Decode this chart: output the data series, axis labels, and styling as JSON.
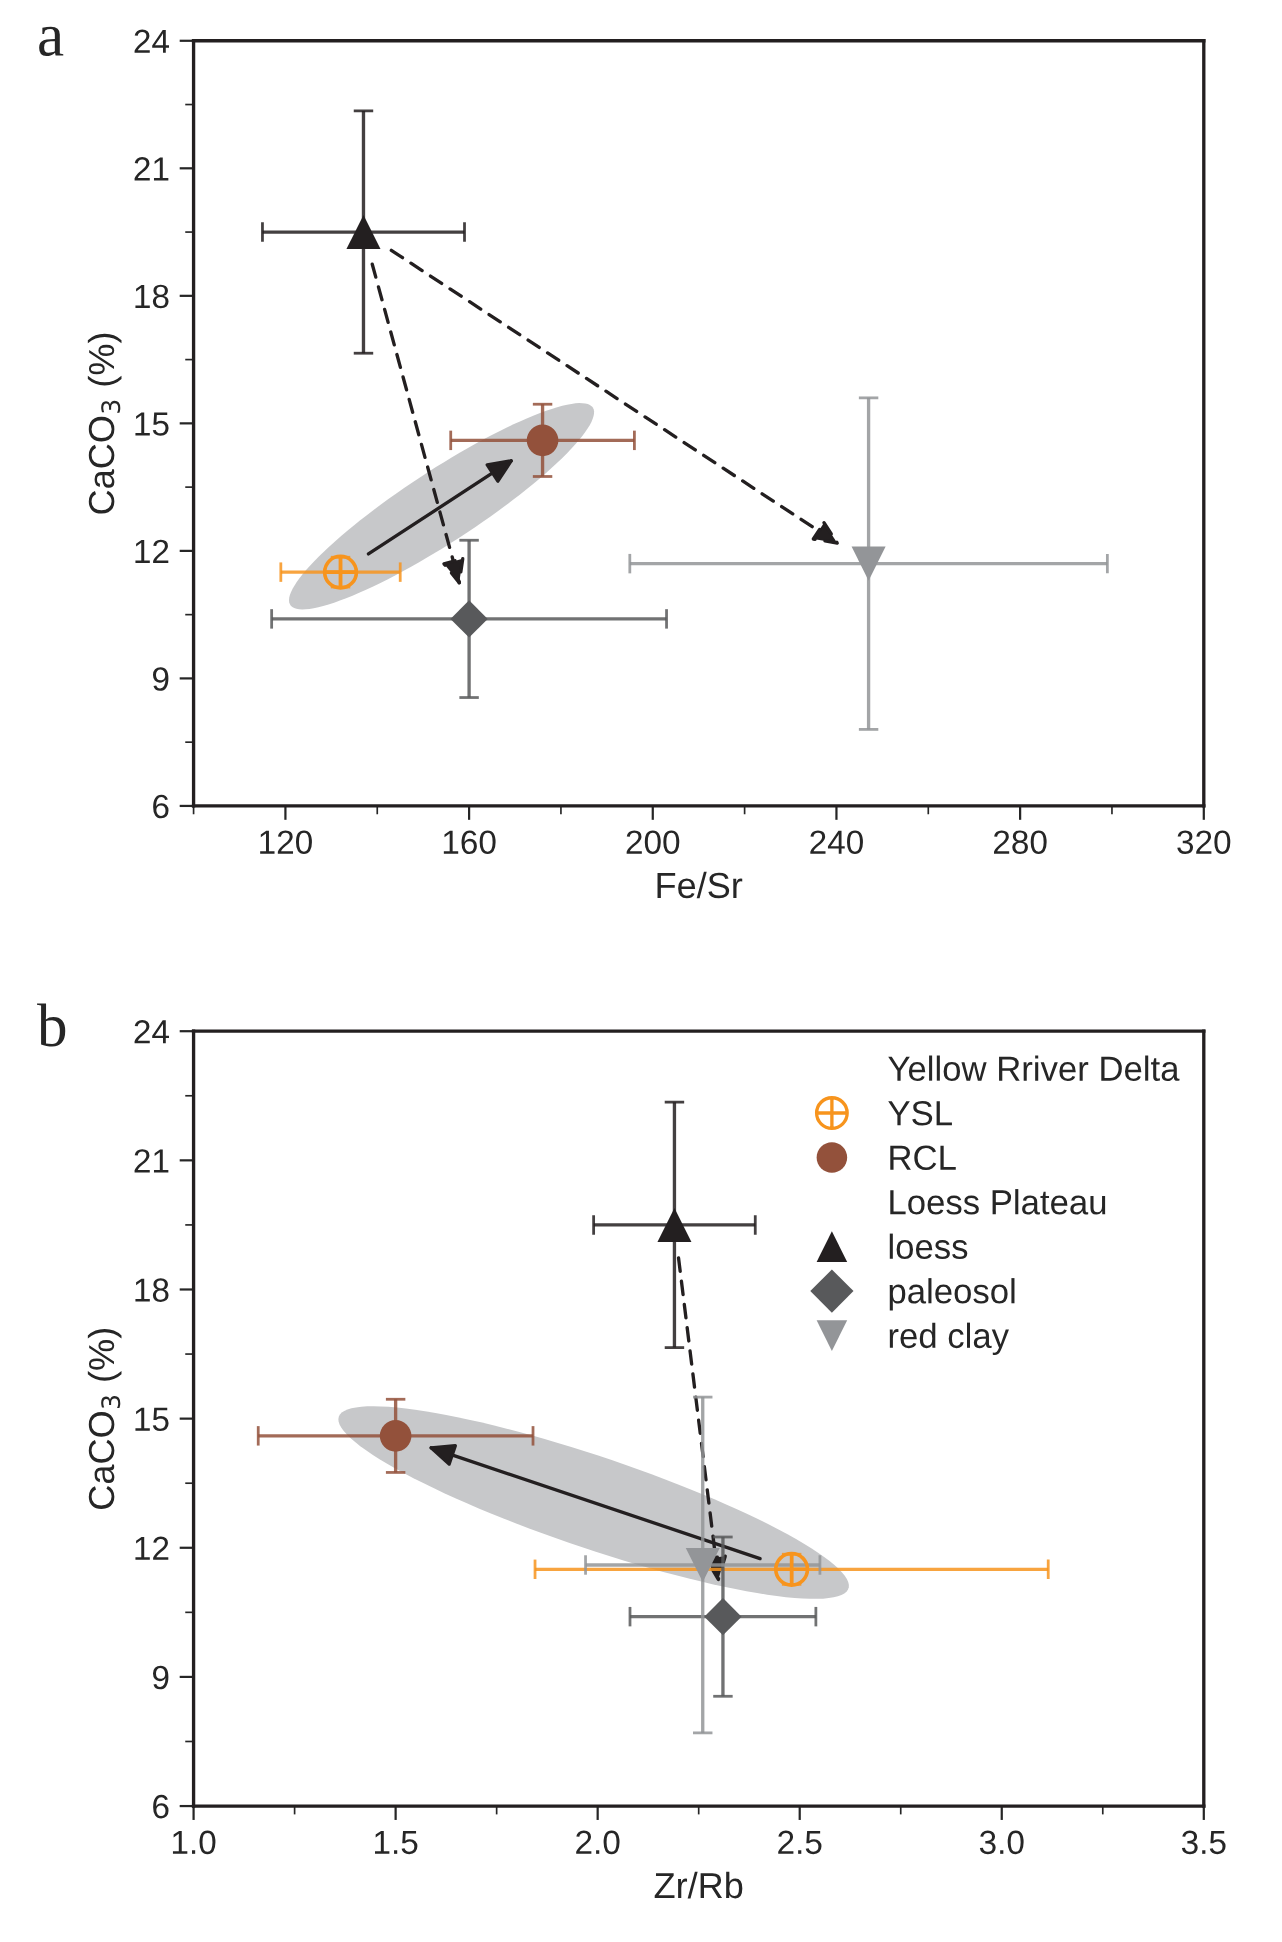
{
  "chart_data": [
    {
      "type": "scatter",
      "title": "a",
      "xlabel": "Fe/Sr",
      "ylabel": "CaCO$_{3}$ (%)",
      "xlim": [
        100,
        320
      ],
      "xticks": [
        120,
        160,
        200,
        240,
        280,
        320
      ],
      "ylim": [
        6,
        24
      ],
      "yticks": [
        6,
        9,
        12,
        15,
        18,
        21,
        24
      ],
      "grid": false,
      "legend": false,
      "series": [
        {
          "marker": "cross",
          "color": "#f7941d",
          "x": [
            132
          ],
          "values": [
            11.5
          ],
          "xerrors": [
            13
          ],
          "errors": [
            0.35
          ]
        },
        {
          "marker": "circle",
          "color": "#93513b",
          "x": [
            176
          ],
          "values": [
            14.6
          ],
          "xerrors": [
            20
          ],
          "errors": [
            0.85
          ]
        },
        {
          "marker": "triangle",
          "color": "#231f20",
          "x": [
            137
          ],
          "values": [
            19.5
          ],
          "xerrors": [
            22
          ],
          "errors": [
            2.85
          ]
        },
        {
          "marker": "diamond",
          "color": "#58595b",
          "x": [
            160
          ],
          "values": [
            10.4
          ],
          "xerrors": [
            43
          ],
          "errors": [
            1.85
          ]
        },
        {
          "marker": "triangle_down",
          "color": "#939598",
          "x": [
            247
          ],
          "values": [
            11.7
          ],
          "xerrors": [
            52
          ],
          "errors": [
            3.9
          ]
        }
      ]
    },
    {
      "type": "scatter",
      "title": "b",
      "xlabel": "Zr/Rb",
      "ylabel": "CaCO$_{3}$ (%)",
      "xlim": [
        1.0,
        3.5
      ],
      "xticks": [
        {
          "value": 1.0,
          "label": "1.0"
        },
        1.5,
        {
          "value": 2.0,
          "label": "2.0"
        },
        2.5,
        {
          "value": 3.0,
          "label": "3.0"
        },
        3.5
      ],
      "ylim": [
        6,
        24
      ],
      "yticks": [
        6,
        9,
        12,
        15,
        18,
        21,
        24
      ],
      "grid": false,
      "legend": "top right",
      "annotations": [
        "Yellow Rriver Delta",
        "Loess Plateau"
      ],
      "series": [
        {
          "name": "YSL",
          "marker": "cross",
          "color": "#f7941d",
          "x": [
            2.48
          ],
          "values": [
            11.5
          ],
          "xerrors": [
            0.635
          ],
          "errors": [
            0.35
          ]
        },
        {
          "name": "RCL",
          "marker": "circle",
          "color": "#93513b",
          "x": [
            1.5
          ],
          "values": [
            14.6
          ],
          "xerrors": [
            0.34
          ],
          "errors": [
            0.85
          ]
        },
        {
          "name": "loess",
          "marker": "triangle",
          "color": "#231f20",
          "x": [
            2.19
          ],
          "values": [
            19.5
          ],
          "xerrors": [
            0.2
          ],
          "errors": [
            2.85
          ]
        },
        {
          "name": "paleosol",
          "marker": "diamond",
          "color": "#58595b",
          "x": [
            2.31
          ],
          "values": [
            10.4
          ],
          "xerrors": [
            0.23
          ],
          "errors": [
            1.85
          ]
        },
        {
          "name": "red clay",
          "marker": "triangle_down",
          "color": "#939598",
          "x": [
            2.26
          ],
          "values": [
            11.6
          ],
          "xerrors": [
            0.29
          ],
          "errors": [
            3.9
          ]
        }
      ]
    }
  ]
}
